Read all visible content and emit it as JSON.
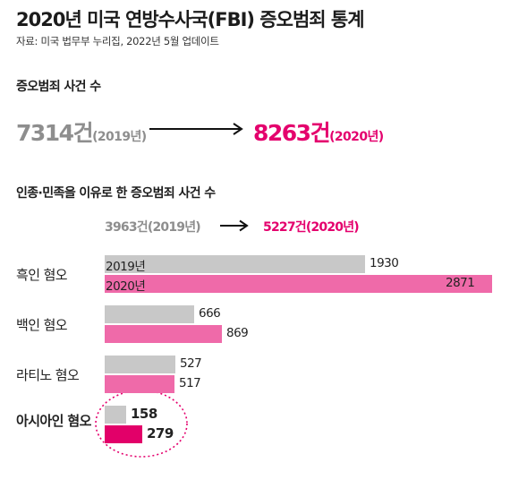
{
  "title": "2020년 미국 연방수사국(FBI) 증오범죄 통계",
  "source": "자료: 미국 법무부 누리집, 2022년 5월 업데이트",
  "total_section": {
    "label": "증오범죄 사건 수",
    "from_value": "7314건",
    "from_year": "(2019년)",
    "to_value": "8263건",
    "to_year": "(2020년)"
  },
  "race_section": {
    "label": "인종·민족을 이유로 한 증오범죄 사건 수",
    "from_text": "3963건(2019년)",
    "to_text": "5227건(2020년)"
  },
  "colors": {
    "gray_bar": "#c8c8c8",
    "pink_bar": "#ef6aa9",
    "highlight_bar": "#e20069",
    "accent_text": "#e4006d",
    "muted_text": "#8e8e8e"
  },
  "chart_data": {
    "type": "bar",
    "orientation": "horizontal",
    "categories": [
      "흑인 혐오",
      "백인  혐오",
      "라티노 혐오",
      "아시아인 혐오"
    ],
    "series": [
      {
        "name": "2019년",
        "values": [
          1930,
          666,
          527,
          158
        ]
      },
      {
        "name": "2020년",
        "values": [
          2871,
          869,
          517,
          279
        ]
      }
    ],
    "series_labels_on_first_bar": [
      "2019년",
      "2020년"
    ],
    "value_labels": [
      [
        "1930",
        "2871"
      ],
      [
        "666",
        "869"
      ],
      [
        "527",
        "517"
      ],
      [
        "158",
        "279"
      ]
    ],
    "highlighted_category": "아시아인 혐오",
    "xlim": [
      0,
      2871
    ],
    "grid": false,
    "legend": "none"
  }
}
